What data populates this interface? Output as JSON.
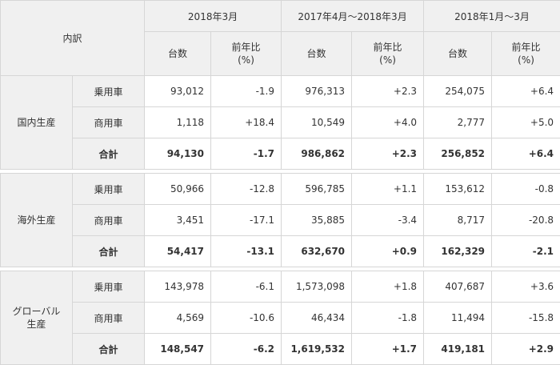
{
  "header": {
    "breakdown": "内訳",
    "periods": [
      "2018年3月",
      "2017年4月～2018年3月",
      "2018年1月～3月"
    ],
    "units_label": "台数",
    "yoy_label_line1": "前年比",
    "yoy_label_line2": "(%)"
  },
  "sections": [
    {
      "name_line1": "国内生産",
      "name_line2": "",
      "rows": [
        {
          "label": "乗用車",
          "values": [
            "93,012",
            "-1.9",
            "976,313",
            "+2.3",
            "254,075",
            "+6.4"
          ]
        },
        {
          "label": "商用車",
          "values": [
            "1,118",
            "+18.4",
            "10,549",
            "+4.0",
            "2,777",
            "+5.0"
          ]
        },
        {
          "label": "合計",
          "values": [
            "94,130",
            "-1.7",
            "986,862",
            "+2.3",
            "256,852",
            "+6.4"
          ]
        }
      ]
    },
    {
      "name_line1": "海外生産",
      "name_line2": "",
      "rows": [
        {
          "label": "乗用車",
          "values": [
            "50,966",
            "-12.8",
            "596,785",
            "+1.1",
            "153,612",
            "-0.8"
          ]
        },
        {
          "label": "商用車",
          "values": [
            "3,451",
            "-17.1",
            "35,885",
            "-3.4",
            "8,717",
            "-20.8"
          ]
        },
        {
          "label": "合計",
          "values": [
            "54,417",
            "-13.1",
            "632,670",
            "+0.9",
            "162,329",
            "-2.1"
          ]
        }
      ]
    },
    {
      "name_line1": "グローバル",
      "name_line2": "生産",
      "rows": [
        {
          "label": "乗用車",
          "values": [
            "143,978",
            "-6.1",
            "1,573,098",
            "+1.8",
            "407,687",
            "+3.6"
          ]
        },
        {
          "label": "商用車",
          "values": [
            "4,569",
            "-10.6",
            "46,434",
            "-1.8",
            "11,494",
            "-15.8"
          ]
        },
        {
          "label": "合計",
          "values": [
            "148,547",
            "-6.2",
            "1,619,532",
            "+1.7",
            "419,181",
            "+2.9"
          ]
        }
      ]
    }
  ]
}
